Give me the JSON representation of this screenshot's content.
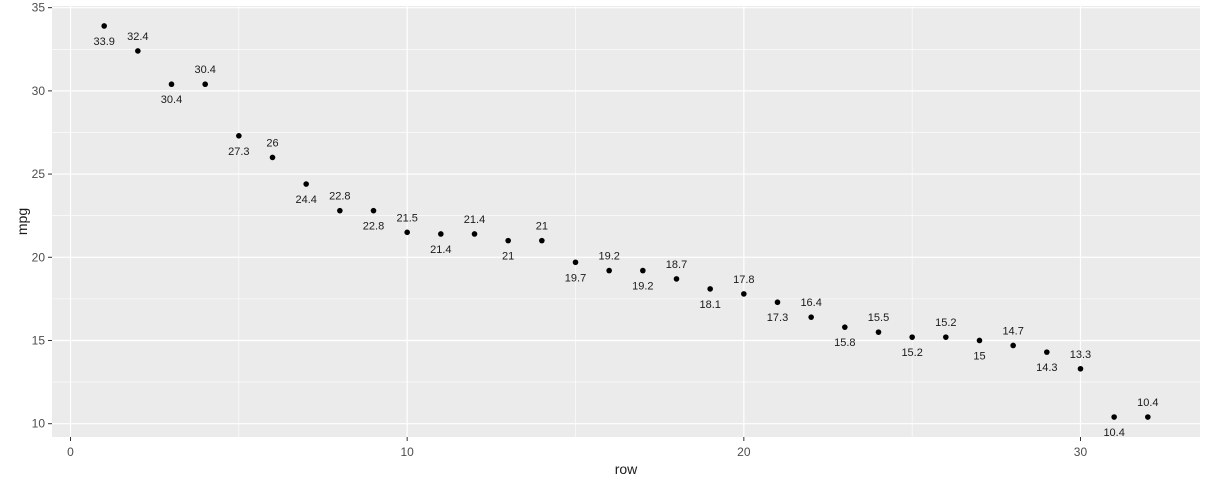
{
  "chart_data": {
    "type": "scatter",
    "title": "",
    "xlabel": "row",
    "ylabel": "mpg",
    "xlim": [
      -0.55,
      33.55
    ],
    "ylim": [
      9.2,
      35.1
    ],
    "x_ticks": [
      0,
      10,
      20,
      30
    ],
    "x_minor_ticks": [
      5,
      15,
      25
    ],
    "y_ticks": [
      10,
      15,
      20,
      25,
      30,
      35
    ],
    "y_minor_ticks": [
      12.5,
      17.5,
      22.5,
      27.5,
      32.5
    ],
    "grid": true,
    "legend": "none",
    "colors": {
      "panel": "#ebebeb",
      "grid": "#ffffff",
      "point": "#000000",
      "tick_label": "#4d4d4d",
      "axis_title": "#1a1a1a"
    },
    "x": [
      1,
      2,
      3,
      4,
      5,
      6,
      7,
      8,
      9,
      10,
      11,
      12,
      13,
      14,
      15,
      16,
      17,
      18,
      19,
      20,
      21,
      22,
      23,
      24,
      25,
      26,
      27,
      28,
      29,
      30,
      31,
      32
    ],
    "y": [
      33.9,
      32.4,
      30.4,
      30.4,
      27.3,
      26,
      24.4,
      22.8,
      22.8,
      21.5,
      21.4,
      21.4,
      21,
      21,
      19.7,
      19.2,
      19.2,
      18.7,
      18.1,
      17.8,
      17.3,
      16.4,
      15.8,
      15.5,
      15.2,
      15.2,
      15,
      14.7,
      14.3,
      13.3,
      10.4,
      10.4
    ],
    "labels": [
      "33.9",
      "32.4",
      "30.4",
      "30.4",
      "27.3",
      "26",
      "24.4",
      "22.8",
      "22.8",
      "21.5",
      "21.4",
      "21.4",
      "21",
      "21",
      "19.7",
      "19.2",
      "19.2",
      "18.7",
      "18.1",
      "17.8",
      "17.3",
      "16.4",
      "15.8",
      "15.5",
      "15.2",
      "15.2",
      "15",
      "14.7",
      "14.3",
      "13.3",
      "10.4",
      "10.4"
    ]
  }
}
